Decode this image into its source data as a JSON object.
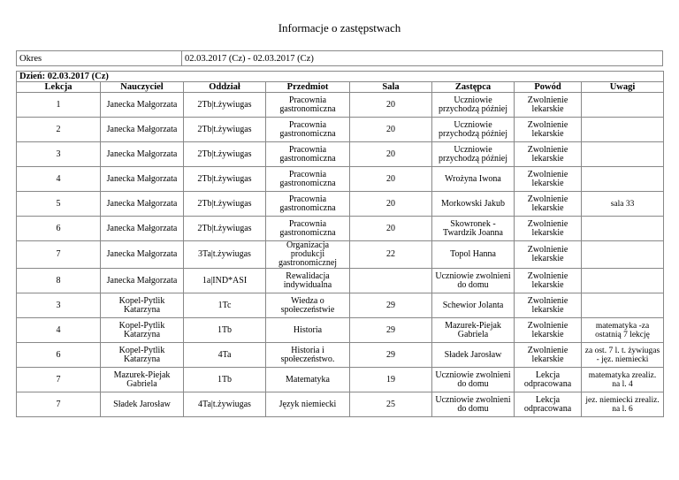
{
  "title": "Informacje o zastępstwach",
  "okres": {
    "label": "Okres",
    "value": "02.03.2017 (Cz) - 02.03.2017 (Cz)"
  },
  "day": "Dzień: 02.03.2017 (Cz)",
  "headers": [
    "Lekcja",
    "Nauczyciel",
    "Oddział",
    "Przedmiot",
    "Sala",
    "Zastępca",
    "Powód",
    "Uwagi"
  ],
  "rows": [
    [
      "1",
      "Janecka Małgorzata",
      "2Tb|t.żywiugas",
      "Pracownia gastronomiczna",
      "20",
      "Uczniowie przychodzą później",
      "Zwolnienie lekarskie",
      ""
    ],
    [
      "2",
      "Janecka Małgorzata",
      "2Tb|t.żywiugas",
      "Pracownia gastronomiczna",
      "20",
      "Uczniowie przychodzą później",
      "Zwolnienie lekarskie",
      ""
    ],
    [
      "3",
      "Janecka Małgorzata",
      "2Tb|t.żywiugas",
      "Pracownia gastronomiczna",
      "20",
      "Uczniowie przychodzą później",
      "Zwolnienie lekarskie",
      ""
    ],
    [
      "4",
      "Janecka Małgorzata",
      "2Tb|t.żywiugas",
      "Pracownia gastronomiczna",
      "20",
      "Wrożyna Iwona",
      "Zwolnienie lekarskie",
      ""
    ],
    [
      "5",
      "Janecka Małgorzata",
      "2Tb|t.żywiugas",
      "Pracownia gastronomiczna",
      "20",
      "Morkowski Jakub",
      "Zwolnienie lekarskie",
      "sala 33"
    ],
    [
      "6",
      "Janecka Małgorzata",
      "2Tb|t.żywiugas",
      "Pracownia gastronomiczna",
      "20",
      "Skowronek - Twardzik Joanna",
      "Zwolnienie lekarskie",
      ""
    ],
    [
      "7",
      "Janecka Małgorzata",
      "3Ta|t.żywiugas",
      "Organizacja produkcji gastronomicznej",
      "22",
      "Topol Hanna",
      "Zwolnienie lekarskie",
      ""
    ],
    [
      "8",
      "Janecka Małgorzata",
      "1a|IND*ASI",
      "Rewalidacja indywidualna",
      "",
      "Uczniowie zwolnieni do domu",
      "Zwolnienie lekarskie",
      ""
    ],
    [
      "3",
      "Kopel-Pytlik Katarzyna",
      "1Tc",
      "Wiedza o społeczeństwie",
      "29",
      "Schewior Jolanta",
      "Zwolnienie lekarskie",
      ""
    ],
    [
      "4",
      "Kopel-Pytlik Katarzyna",
      "1Tb",
      "Historia",
      "29",
      "Mazurek-Piejak Gabriela",
      "Zwolnienie lekarskie",
      "matematyka -za ostatnią 7 lekcję"
    ],
    [
      "6",
      "Kopel-Pytlik Katarzyna",
      "4Ta",
      "Historia i społeczeństwo.",
      "29",
      "Sładek Jarosław",
      "Zwolnienie lekarskie",
      "za ost. 7 l. t. żywiugas - jęz. niemiecki"
    ],
    [
      "7",
      "Mazurek-Piejak Gabriela",
      "1Tb",
      "Matematyka",
      "19",
      "Uczniowie zwolnieni do domu",
      "Lekcja odpracowana",
      "matematyka zrealiz. na l. 4"
    ],
    [
      "7",
      "Sładek Jarosław",
      "4Ta|t.żywiugas",
      "Język niemiecki",
      "25",
      "Uczniowie zwolnieni do domu",
      "Lekcja odpracowana",
      "jez. niemiecki zrealiz. na l. 6"
    ]
  ]
}
